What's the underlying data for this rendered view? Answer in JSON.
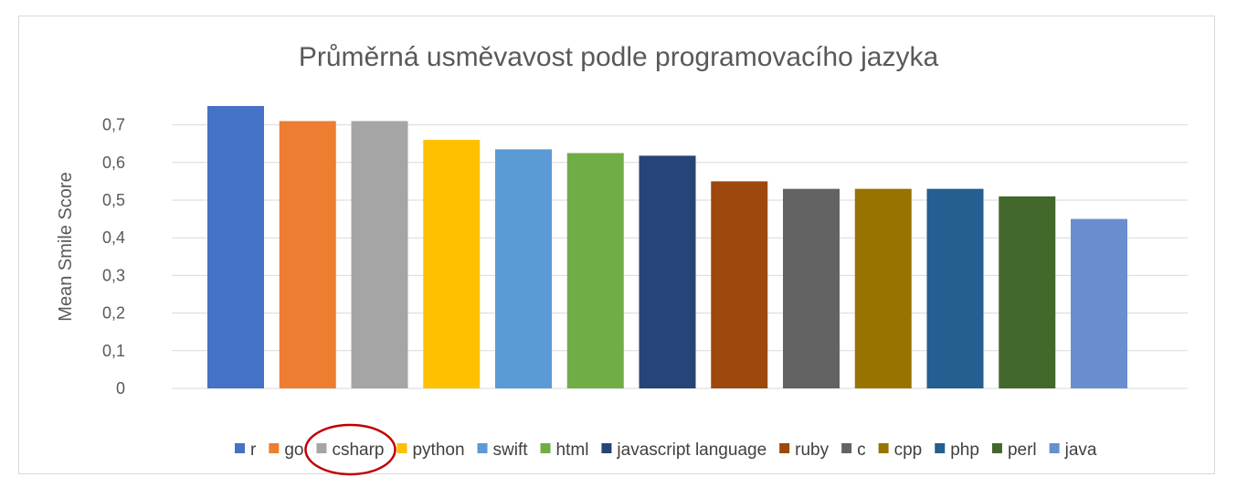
{
  "chart_data": {
    "type": "bar",
    "title": "Průměrná usměvavost podle programovacího jazyka",
    "ylabel": "Mean Smile Score",
    "xlabel": "",
    "ylim": [
      0,
      0.75
    ],
    "yticks": [
      "0",
      "0,1",
      "0,2",
      "0,3",
      "0,4",
      "0,5",
      "0,6",
      "0,7"
    ],
    "grid": true,
    "legend_position": "bottom",
    "series": [
      {
        "name": "r",
        "value": 0.75,
        "color": "#4472C4"
      },
      {
        "name": "go",
        "value": 0.71,
        "color": "#ED7D31"
      },
      {
        "name": "csharp",
        "value": 0.71,
        "color": "#A5A5A5"
      },
      {
        "name": "python",
        "value": 0.66,
        "color": "#FFC000"
      },
      {
        "name": "swift",
        "value": 0.635,
        "color": "#5B9BD5"
      },
      {
        "name": "html",
        "value": 0.625,
        "color": "#70AD47"
      },
      {
        "name": "javascript language",
        "value": 0.618,
        "color": "#264478"
      },
      {
        "name": "ruby",
        "value": 0.55,
        "color": "#9E480E"
      },
      {
        "name": "c",
        "value": 0.53,
        "color": "#636363"
      },
      {
        "name": "cpp",
        "value": 0.53,
        "color": "#997300"
      },
      {
        "name": "php",
        "value": 0.53,
        "color": "#255E91"
      },
      {
        "name": "perl",
        "value": 0.51,
        "color": "#43682B"
      },
      {
        "name": "java",
        "value": 0.45,
        "color": "#698ED0"
      }
    ],
    "annotation": {
      "type": "circle",
      "target": "csharp",
      "color": "#C00000"
    }
  }
}
